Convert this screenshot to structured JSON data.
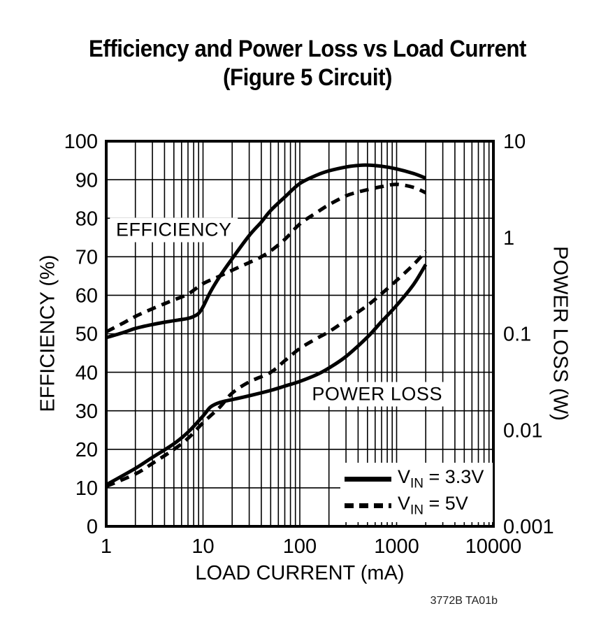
{
  "page": {
    "title_line1": "Efficiency and Power Loss vs Load Current",
    "title_line2": "(Figure 5 Circuit)",
    "footnote": "3772B TA01b"
  },
  "chart_data": {
    "type": "line",
    "title": "Efficiency and Power Loss vs Load Current (Figure 5 Circuit)",
    "grid": "on",
    "x_axis": {
      "label": "LOAD CURRENT (mA)",
      "scale": "log",
      "min": 1,
      "max": 10000,
      "ticks": [
        1,
        10,
        100,
        1000,
        10000
      ],
      "tick_labels": [
        "1",
        "10",
        "100",
        "1000",
        "10000"
      ]
    },
    "y_left": {
      "label": "EFFICIENCY (%)",
      "scale": "linear",
      "min": 0,
      "max": 100,
      "ticks": [
        0,
        10,
        20,
        30,
        40,
        50,
        60,
        70,
        80,
        90,
        100
      ],
      "tick_labels": [
        "0",
        "10",
        "20",
        "30",
        "40",
        "50",
        "60",
        "70",
        "80",
        "90",
        "100"
      ]
    },
    "y_right": {
      "label": "POWER LOSS (W)",
      "scale": "log",
      "min": 0.001,
      "max": 10,
      "ticks": [
        10,
        1,
        0.1,
        0.01,
        0.001
      ],
      "tick_labels": [
        "10",
        "1",
        "0.1",
        "0.01",
        "0.001"
      ]
    },
    "annotations": [
      {
        "text": "EFFICIENCY",
        "x": 5,
        "y_left": 77
      },
      {
        "text": "POWER LOSS",
        "x": 630,
        "y_left": 34.3
      }
    ],
    "legend": {
      "position": "bottom-right",
      "entries": [
        {
          "line_style": "solid",
          "v": "V",
          "sub": "IN",
          "rest": " = 3.3V"
        },
        {
          "line_style": "dashed",
          "v": "V",
          "sub": "IN",
          "rest": " = 5V"
        }
      ]
    },
    "series": [
      {
        "name": "Efficiency, VIN = 3.3V",
        "measure": "efficiency",
        "input_voltage": "3.3V",
        "axis": "left",
        "style": "solid",
        "unit": "%",
        "points": [
          [
            1,
            49
          ],
          [
            1.5,
            50.3
          ],
          [
            2,
            51.4
          ],
          [
            3,
            52.4
          ],
          [
            4,
            53
          ],
          [
            5,
            53.4
          ],
          [
            6,
            53.7
          ],
          [
            7,
            54
          ],
          [
            8,
            54.5
          ],
          [
            9,
            55.3
          ],
          [
            10,
            57
          ],
          [
            12,
            61
          ],
          [
            15,
            65
          ],
          [
            20,
            69.5
          ],
          [
            30,
            75.5
          ],
          [
            40,
            79
          ],
          [
            50,
            82
          ],
          [
            70,
            85.5
          ],
          [
            100,
            89
          ],
          [
            150,
            91.2
          ],
          [
            200,
            92.3
          ],
          [
            300,
            93.3
          ],
          [
            400,
            93.7
          ],
          [
            500,
            93.8
          ],
          [
            700,
            93.5
          ],
          [
            1000,
            92.8
          ],
          [
            1500,
            91.6
          ],
          [
            2000,
            90.4
          ]
        ]
      },
      {
        "name": "Efficiency, VIN = 5V",
        "measure": "efficiency",
        "input_voltage": "5V",
        "axis": "left",
        "style": "dashed",
        "unit": "%",
        "points": [
          [
            1,
            50.5
          ],
          [
            1.5,
            52.8
          ],
          [
            2,
            54.5
          ],
          [
            3,
            56.5
          ],
          [
            4,
            57.8
          ],
          [
            5,
            58.8
          ],
          [
            7,
            60.3
          ],
          [
            10,
            63
          ],
          [
            15,
            65
          ],
          [
            20,
            66.5
          ],
          [
            30,
            68.5
          ],
          [
            40,
            70
          ],
          [
            50,
            71.5
          ],
          [
            70,
            74.5
          ],
          [
            100,
            78.5
          ],
          [
            150,
            81.5
          ],
          [
            200,
            83.5
          ],
          [
            300,
            85.8
          ],
          [
            400,
            86.8
          ],
          [
            500,
            87.4
          ],
          [
            700,
            88.2
          ],
          [
            1000,
            88.8
          ],
          [
            1500,
            88
          ],
          [
            2000,
            86.6
          ]
        ]
      },
      {
        "name": "Power Loss, VIN = 3.3V",
        "measure": "power-loss",
        "input_voltage": "3.3V",
        "axis": "right",
        "style": "solid",
        "unit": "W",
        "points": [
          [
            1,
            0.0027
          ],
          [
            2,
            0.004
          ],
          [
            3,
            0.0052
          ],
          [
            5,
            0.0072
          ],
          [
            7,
            0.0095
          ],
          [
            10,
            0.014
          ],
          [
            12,
            0.0174
          ],
          [
            15,
            0.0194
          ],
          [
            20,
            0.0207
          ],
          [
            30,
            0.0227
          ],
          [
            50,
            0.0258
          ],
          [
            70,
            0.0286
          ],
          [
            100,
            0.032
          ],
          [
            150,
            0.0377
          ],
          [
            200,
            0.0441
          ],
          [
            300,
            0.0581
          ],
          [
            500,
            0.0925
          ],
          [
            700,
            0.134
          ],
          [
            1000,
            0.197
          ],
          [
            1500,
            0.326
          ],
          [
            2000,
            0.524
          ]
        ]
      },
      {
        "name": "Power Loss, VIN = 5V",
        "measure": "power-loss",
        "input_voltage": "5V",
        "axis": "right",
        "style": "dashed",
        "unit": "W",
        "points": [
          [
            1,
            0.0026
          ],
          [
            2,
            0.0035
          ],
          [
            3,
            0.0045
          ],
          [
            5,
            0.0063
          ],
          [
            7,
            0.0082
          ],
          [
            10,
            0.0119
          ],
          [
            15,
            0.0174
          ],
          [
            20,
            0.0242
          ],
          [
            30,
            0.0316
          ],
          [
            50,
            0.0398
          ],
          [
            70,
            0.0525
          ],
          [
            100,
            0.0703
          ],
          [
            150,
            0.0895
          ],
          [
            200,
            0.105
          ],
          [
            300,
            0.138
          ],
          [
            500,
            0.197
          ],
          [
            700,
            0.261
          ],
          [
            1000,
            0.358
          ],
          [
            1500,
            0.524
          ],
          [
            2000,
            0.72
          ]
        ]
      }
    ]
  }
}
